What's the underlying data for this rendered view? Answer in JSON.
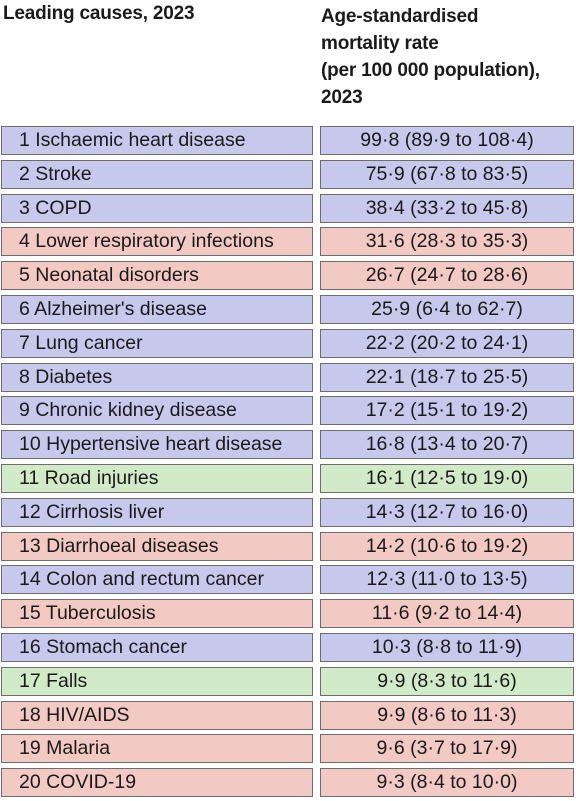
{
  "header": {
    "causes_label": "Leading causes, 2023",
    "rate_label_lines": [
      "Age-standardised",
      "mortality rate",
      "(per 100 000 population),",
      "2023"
    ]
  },
  "colors": {
    "blue": "#c6c9ec",
    "red": "#f2c9c3",
    "green": "#d1ebc9"
  },
  "rows": [
    {
      "cause": "1 Ischaemic heart disease",
      "rate": "99·8 (89·9 to 108·4)",
      "group": "blue"
    },
    {
      "cause": "2 Stroke",
      "rate": "75·9 (67·8 to 83·5)",
      "group": "blue"
    },
    {
      "cause": "3 COPD",
      "rate": "38·4 (33·2 to 45·8)",
      "group": "blue"
    },
    {
      "cause": "4 Lower respiratory infections",
      "rate": "31·6 (28·3 to 35·3)",
      "group": "red"
    },
    {
      "cause": "5 Neonatal disorders",
      "rate": "26·7 (24·7 to 28·6)",
      "group": "red"
    },
    {
      "cause": "6 Alzheimer's disease",
      "rate": "25·9 (6·4 to 62·7)",
      "group": "blue"
    },
    {
      "cause": "7 Lung cancer",
      "rate": "22·2 (20·2 to 24·1)",
      "group": "blue"
    },
    {
      "cause": "8 Diabetes",
      "rate": "22·1 (18·7 to 25·5)",
      "group": "blue"
    },
    {
      "cause": "9 Chronic kidney disease",
      "rate": "17·2 (15·1 to 19·2)",
      "group": "blue"
    },
    {
      "cause": "10 Hypertensive heart disease",
      "rate": "16·8 (13·4 to 20·7)",
      "group": "blue"
    },
    {
      "cause": "11 Road injuries",
      "rate": "16·1 (12·5 to 19·0)",
      "group": "green"
    },
    {
      "cause": "12 Cirrhosis liver",
      "rate": "14·3 (12·7 to 16·0)",
      "group": "blue"
    },
    {
      "cause": "13 Diarrhoeal diseases",
      "rate": "14·2 (10·6 to 19·2)",
      "group": "red"
    },
    {
      "cause": "14 Colon and rectum cancer",
      "rate": "12·3 (11·0 to 13·5)",
      "group": "blue"
    },
    {
      "cause": "15 Tuberculosis",
      "rate": "11·6 (9·2 to 14·4)",
      "group": "red"
    },
    {
      "cause": "16 Stomach cancer",
      "rate": "10·3 (8·8 to 11·9)",
      "group": "blue"
    },
    {
      "cause": "17 Falls",
      "rate": "9·9 (8·3 to 11·6)",
      "group": "green"
    },
    {
      "cause": "18 HIV/AIDS",
      "rate": "9·9 (8·6 to 11·3)",
      "group": "red"
    },
    {
      "cause": "19 Malaria",
      "rate": "9·6 (3·7 to 17·9)",
      "group": "red"
    },
    {
      "cause": "20 COVID-19",
      "rate": "9·3 (8·4 to 10·0)",
      "group": "red"
    }
  ]
}
